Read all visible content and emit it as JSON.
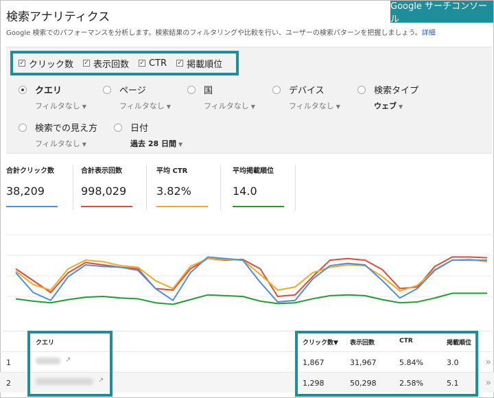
{
  "header": {
    "title": "検索アナリティクス",
    "brand": "Google サーチコンソール",
    "description": "Google 検索でのパフォーマンスを分析します。検索結果のフィルタリングや比較を行い、ユーザーの検索パターンを把握しましょう。",
    "details_link": "詳細"
  },
  "metric_toggles": [
    {
      "label": "クリック数",
      "checked": true
    },
    {
      "label": "表示回数",
      "checked": true
    },
    {
      "label": "CTR",
      "checked": true
    },
    {
      "label": "掲載順位",
      "checked": true
    }
  ],
  "dimensions": [
    {
      "label": "クエリ",
      "selected": true,
      "value": "フィルタなし"
    },
    {
      "label": "ページ",
      "selected": false,
      "value": "フィルタなし"
    },
    {
      "label": "国",
      "selected": false,
      "value": "フィルタなし"
    },
    {
      "label": "デバイス",
      "selected": false,
      "value": "フィルタなし"
    },
    {
      "label": "検索タイプ",
      "selected": false,
      "value": "ウェブ"
    },
    {
      "label": "検索での見え方",
      "selected": false,
      "value": "フィルタなし"
    },
    {
      "label": "日付",
      "selected": false,
      "value": "過去 28 日間"
    }
  ],
  "summary": [
    {
      "label": "合計クリック数",
      "value": "38,209",
      "color": "#4a90e2"
    },
    {
      "label": "合計表示回数",
      "value": "998,029",
      "color": "#dd4b39"
    },
    {
      "label": "平均 CTR",
      "value": "3.82%",
      "color": "#f4a81d"
    },
    {
      "label": "平均掲載順位",
      "value": "14.0",
      "color": "#1e9e32"
    }
  ],
  "chart_data": {
    "type": "line",
    "x": [
      1,
      2,
      3,
      4,
      5,
      6,
      7,
      8,
      9,
      10,
      11,
      12,
      13,
      14,
      15,
      16,
      17,
      18,
      19,
      20,
      21,
      22,
      23,
      24,
      25,
      26,
      27,
      28
    ],
    "grid": true,
    "series": [
      {
        "color": "#dd4b39",
        "values": [
          0.55,
          0.4,
          0.25,
          0.5,
          0.63,
          0.6,
          0.57,
          0.55,
          0.3,
          0.28,
          0.55,
          0.68,
          0.66,
          0.67,
          0.55,
          0.2,
          0.22,
          0.45,
          0.66,
          0.68,
          0.66,
          0.54,
          0.3,
          0.32,
          0.58,
          0.7,
          0.7,
          0.69
        ]
      },
      {
        "color": "#f4a81d",
        "values": [
          0.52,
          0.35,
          0.28,
          0.55,
          0.66,
          0.64,
          0.59,
          0.57,
          0.4,
          0.3,
          0.58,
          0.68,
          0.67,
          0.66,
          0.48,
          0.28,
          0.32,
          0.5,
          0.57,
          0.6,
          0.59,
          0.45,
          0.27,
          0.34,
          0.54,
          0.66,
          0.67,
          0.64
        ]
      },
      {
        "color": "#4a90e2",
        "values": [
          0.5,
          0.25,
          0.15,
          0.45,
          0.6,
          0.58,
          0.57,
          0.53,
          0.3,
          0.15,
          0.5,
          0.7,
          0.68,
          0.66,
          0.38,
          0.13,
          0.15,
          0.42,
          0.59,
          0.62,
          0.6,
          0.4,
          0.18,
          0.3,
          0.53,
          0.66,
          0.66,
          0.66
        ]
      },
      {
        "color": "#1e9e32",
        "values": [
          0.17,
          0.14,
          0.12,
          0.16,
          0.19,
          0.2,
          0.18,
          0.17,
          0.12,
          0.1,
          0.16,
          0.22,
          0.21,
          0.2,
          0.14,
          0.11,
          0.12,
          0.17,
          0.21,
          0.22,
          0.21,
          0.16,
          0.12,
          0.13,
          0.18,
          0.24,
          0.24,
          0.24
        ]
      }
    ]
  },
  "table": {
    "headers": {
      "query": "クエリ",
      "clicks": "クリック数▼",
      "impressions": "表示回数",
      "ctr": "CTR",
      "position": "掲載順位"
    },
    "rows": [
      {
        "index": "1",
        "clicks": "1,867",
        "impressions": "31,967",
        "ctr": "5.84%",
        "position": "3.0"
      },
      {
        "index": "2",
        "clicks": "1,298",
        "impressions": "50,298",
        "ctr": "2.58%",
        "position": "5.1"
      }
    ]
  },
  "icons": {
    "external_link": "↗",
    "more": "»",
    "sort_caret": "▾"
  },
  "colors": {
    "accent": "#1e8e9a",
    "link": "#1a5fd1"
  }
}
